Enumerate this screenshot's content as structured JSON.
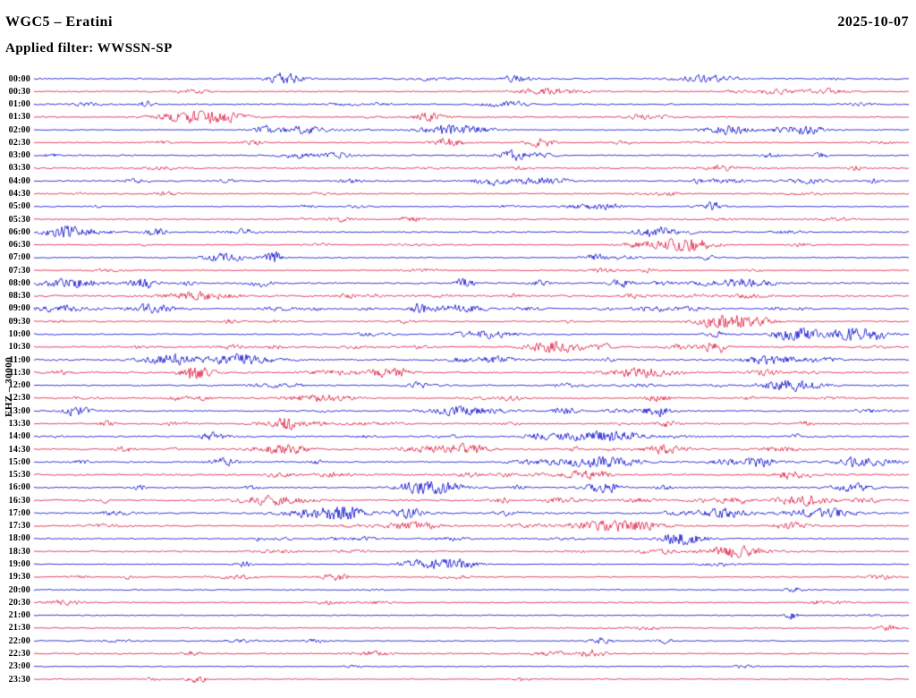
{
  "header": {
    "title": "WGC5 – Eratini",
    "date": "2025-10-07",
    "filter_line": "Applied filter: WWSSN-SP"
  },
  "left_axis": {
    "label": "EHZ – 30000"
  },
  "chart_data": {
    "type": "line",
    "variant": "helicorder-drum-plot",
    "title": "WGC5 – Eratini",
    "station": "WGC5",
    "site": "Eratini",
    "date": "2025-10-07",
    "applied_filter": "WWSSN-SP",
    "channel": "EHZ",
    "scale": "30000",
    "minutes_per_row": 30,
    "row_count": 48,
    "legend": "none",
    "grid": false,
    "description": "Continuous 24-hour seismogram; 48 half-hour traces of background noise with intermittent earthquake burst packets, alternating blue/red line colors.",
    "colors": {
      "blue": "#0000cd",
      "red": "#dc143c"
    },
    "rows": [
      {
        "label": "00:00",
        "color": "blue"
      },
      {
        "label": "00:30",
        "color": "red"
      },
      {
        "label": "01:00",
        "color": "blue"
      },
      {
        "label": "01:30",
        "color": "red"
      },
      {
        "label": "02:00",
        "color": "blue"
      },
      {
        "label": "02:30",
        "color": "red"
      },
      {
        "label": "03:00",
        "color": "blue"
      },
      {
        "label": "03:30",
        "color": "red"
      },
      {
        "label": "04:00",
        "color": "blue"
      },
      {
        "label": "04:30",
        "color": "red"
      },
      {
        "label": "05:00",
        "color": "blue"
      },
      {
        "label": "05:30",
        "color": "red"
      },
      {
        "label": "06:00",
        "color": "blue"
      },
      {
        "label": "06:30",
        "color": "red"
      },
      {
        "label": "07:00",
        "color": "blue"
      },
      {
        "label": "07:30",
        "color": "red"
      },
      {
        "label": "08:00",
        "color": "blue"
      },
      {
        "label": "08:30",
        "color": "red"
      },
      {
        "label": "09:00",
        "color": "blue"
      },
      {
        "label": "09:30",
        "color": "red"
      },
      {
        "label": "10:00",
        "color": "blue"
      },
      {
        "label": "10:30",
        "color": "red"
      },
      {
        "label": "11:00",
        "color": "blue"
      },
      {
        "label": "11:30",
        "color": "red"
      },
      {
        "label": "12:00",
        "color": "blue"
      },
      {
        "label": "12:30",
        "color": "red"
      },
      {
        "label": "13:00",
        "color": "blue"
      },
      {
        "label": "13:30",
        "color": "red"
      },
      {
        "label": "14:00",
        "color": "blue"
      },
      {
        "label": "14:30",
        "color": "red"
      },
      {
        "label": "15:00",
        "color": "blue"
      },
      {
        "label": "15:30",
        "color": "red"
      },
      {
        "label": "16:00",
        "color": "blue"
      },
      {
        "label": "16:30",
        "color": "red"
      },
      {
        "label": "17:00",
        "color": "blue"
      },
      {
        "label": "17:30",
        "color": "red"
      },
      {
        "label": "18:00",
        "color": "blue"
      },
      {
        "label": "18:30",
        "color": "red"
      },
      {
        "label": "19:00",
        "color": "blue"
      },
      {
        "label": "19:30",
        "color": "red"
      },
      {
        "label": "20:00",
        "color": "blue"
      },
      {
        "label": "20:30",
        "color": "red"
      },
      {
        "label": "21:00",
        "color": "blue"
      },
      {
        "label": "21:30",
        "color": "red"
      },
      {
        "label": "22:00",
        "color": "blue"
      },
      {
        "label": "22:30",
        "color": "red"
      },
      {
        "label": "23:00",
        "color": "blue"
      },
      {
        "label": "23:30",
        "color": "red"
      }
    ]
  }
}
